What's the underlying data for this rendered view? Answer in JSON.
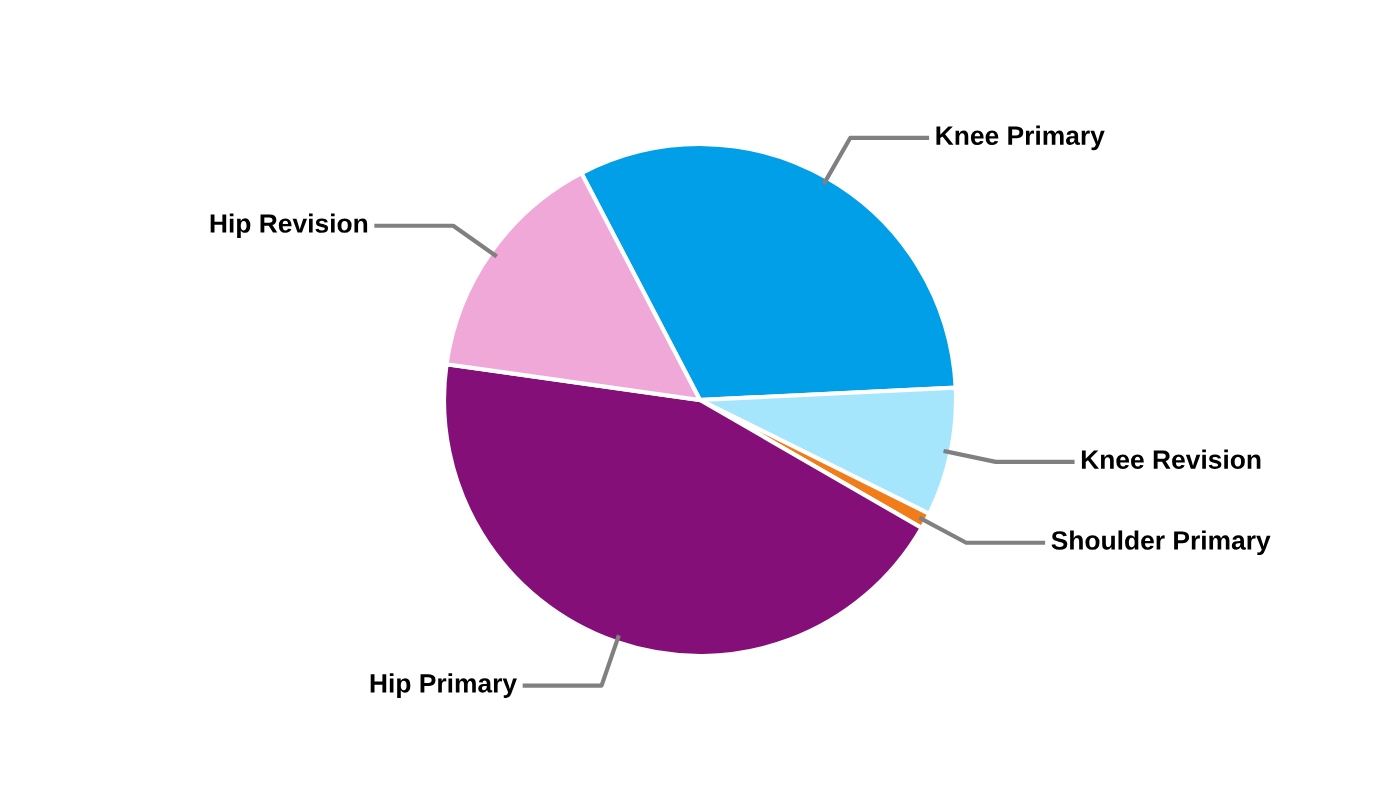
{
  "chart_data": {
    "type": "pie",
    "categories": [
      "Knee Primary",
      "Knee Revision",
      "Shoulder Primary",
      "Hip Primary",
      "Hip Revision"
    ],
    "values": [
      31.9,
      8.1,
      1.0,
      43.9,
      15.1
    ],
    "colors": [
      "#009fe8",
      "#a5e6fc",
      "#f07d1a",
      "#850f78",
      "#f0a8d8"
    ],
    "legend": false
  }
}
